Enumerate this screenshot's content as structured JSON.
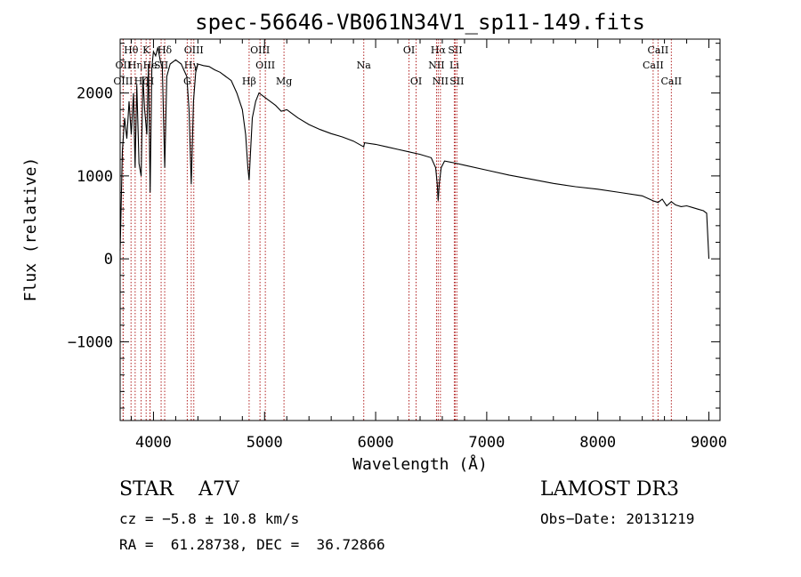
{
  "chart_data": {
    "type": "line",
    "title": "spec-56646-VB061N34V1_sp11-149.fits",
    "xlabel": "Wavelength (Å)",
    "ylabel": "Flux (relative)",
    "xlim": [
      3700,
      9100
    ],
    "ylim": [
      -1950,
      2650
    ],
    "xticks": [
      4000,
      5000,
      6000,
      7000,
      8000,
      9000
    ],
    "yticks": [
      -1000,
      0,
      1000,
      2000
    ],
    "grid": false,
    "line_color": "#000000",
    "marker_color": "#b22222",
    "spectrum": {
      "wavelength": [
        3700,
        3720,
        3740,
        3760,
        3780,
        3800,
        3820,
        3835,
        3850,
        3870,
        3889,
        3905,
        3920,
        3940,
        3955,
        3970,
        3985,
        4000,
        4020,
        4040,
        4060,
        4080,
        4101,
        4120,
        4150,
        4200,
        4250,
        4300,
        4320,
        4340,
        4360,
        4380,
        4400,
        4450,
        4500,
        4550,
        4600,
        4650,
        4700,
        4750,
        4800,
        4830,
        4850,
        4861,
        4872,
        4890,
        4920,
        4950,
        5000,
        5050,
        5100,
        5150,
        5200,
        5300,
        5400,
        5500,
        5600,
        5700,
        5800,
        5893,
        5900,
        6000,
        6100,
        6200,
        6300,
        6400,
        6500,
        6540,
        6555,
        6563,
        6572,
        6590,
        6620,
        6700,
        6800,
        7000,
        7200,
        7400,
        7600,
        7800,
        8000,
        8200,
        8400,
        8498,
        8542,
        8580,
        8620,
        8662,
        8700,
        8750,
        8800,
        8850,
        8900,
        8950,
        8980,
        9000
      ],
      "flux": [
        100,
        1300,
        1700,
        1450,
        1900,
        1500,
        2000,
        1100,
        2100,
        1150,
        1000,
        2200,
        1800,
        1500,
        2350,
        800,
        2300,
        2500,
        2450,
        2550,
        2400,
        2300,
        1100,
        2200,
        2350,
        2400,
        2350,
        2200,
        1800,
        900,
        1900,
        2250,
        2350,
        2330,
        2320,
        2280,
        2250,
        2200,
        2150,
        2000,
        1800,
        1500,
        1100,
        950,
        1250,
        1700,
        1900,
        2000,
        1950,
        1900,
        1850,
        1780,
        1800,
        1700,
        1620,
        1560,
        1510,
        1470,
        1420,
        1350,
        1400,
        1380,
        1350,
        1320,
        1290,
        1260,
        1220,
        1100,
        900,
        700,
        900,
        1100,
        1180,
        1160,
        1130,
        1070,
        1010,
        960,
        910,
        870,
        840,
        800,
        760,
        700,
        680,
        720,
        640,
        690,
        650,
        630,
        640,
        620,
        600,
        580,
        550,
        0
      ]
    },
    "line_markers": [
      {
        "label": "Hθ",
        "wavelength": 3798,
        "row": 1
      },
      {
        "label": "OII",
        "wavelength": 3727,
        "row": 2
      },
      {
        "label": "OIII",
        "wavelength": 3727,
        "row": 3
      },
      {
        "label": "Hη",
        "wavelength": 3835,
        "row": 2
      },
      {
        "label": "Hζ",
        "wavelength": 3889,
        "row": 3
      },
      {
        "label": "K",
        "wavelength": 3934,
        "row": 1
      },
      {
        "label": "He",
        "wavelength": 3970,
        "row": 2
      },
      {
        "label": "H",
        "wavelength": 3968,
        "row": 3
      },
      {
        "label": "SII",
        "wavelength": 4069,
        "row": 2
      },
      {
        "label": "Hδ",
        "wavelength": 4101,
        "row": 1
      },
      {
        "label": "OIII",
        "wavelength": 4363,
        "row": 1
      },
      {
        "label": "Hγ",
        "wavelength": 4340,
        "row": 2
      },
      {
        "label": "G",
        "wavelength": 4304,
        "row": 3
      },
      {
        "label": "OIII",
        "wavelength": 4959,
        "row": 1
      },
      {
        "label": "OIII",
        "wavelength": 5007,
        "row": 2
      },
      {
        "label": "Hβ",
        "wavelength": 4861,
        "row": 3
      },
      {
        "label": "Mg",
        "wavelength": 5175,
        "row": 3
      },
      {
        "label": "Na",
        "wavelength": 5893,
        "row": 2
      },
      {
        "label": "OI",
        "wavelength": 6300,
        "row": 1
      },
      {
        "label": "OI",
        "wavelength": 6364,
        "row": 3
      },
      {
        "label": "Hα",
        "wavelength": 6563,
        "row": 1
      },
      {
        "label": "NII",
        "wavelength": 6548,
        "row": 2
      },
      {
        "label": "NII",
        "wavelength": 6583,
        "row": 3
      },
      {
        "label": "SII",
        "wavelength": 6716,
        "row": 1
      },
      {
        "label": "Li",
        "wavelength": 6708,
        "row": 2
      },
      {
        "label": "SII",
        "wavelength": 6731,
        "row": 3
      },
      {
        "label": "CaII",
        "wavelength": 8542,
        "row": 1
      },
      {
        "label": "CaII",
        "wavelength": 8498,
        "row": 2
      },
      {
        "label": "CaII",
        "wavelength": 8662,
        "row": 3
      }
    ]
  },
  "info": {
    "class_label": "STAR    A7V",
    "survey": "LAMOST DR3",
    "cz": "cz = −5.8 ± 10.8 km/s",
    "obs_date": "Obs−Date: 20131219",
    "radec": "RA =  61.28738, DEC =  36.72866"
  }
}
